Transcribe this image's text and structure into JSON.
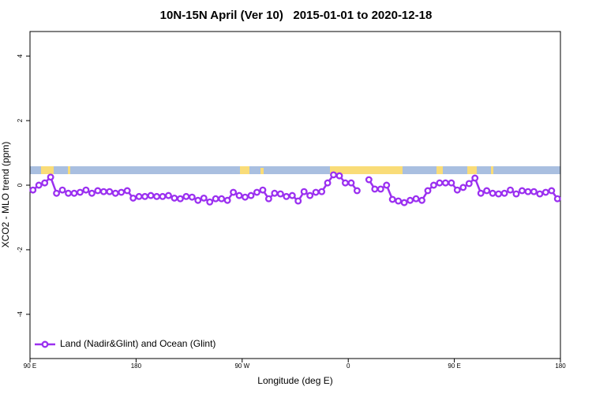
{
  "chart_data": {
    "type": "line",
    "title": "10N-15N April (Ver 10)   2015-01-01 to 2020-12-18",
    "x_label": "Longitude (deg E)",
    "y_label": "XCO2 - MLO trend (ppm)",
    "xlim": [
      90,
      540
    ],
    "xticks": [
      {
        "value": 90,
        "label": "90 E"
      },
      {
        "value": 180,
        "label": "180"
      },
      {
        "value": 270,
        "label": "90 W"
      },
      {
        "value": 360,
        "label": "0"
      },
      {
        "value": 450,
        "label": "90 E"
      },
      {
        "value": 540,
        "label": "180"
      }
    ],
    "ylim": [
      -5.37,
      4.76
    ],
    "yticks": [
      -4,
      -2,
      0,
      2,
      4
    ],
    "legend": "bottomleft",
    "x": [
      92.5,
      97.5,
      102.5,
      107.5,
      112.5,
      117.5,
      122.5,
      127.5,
      132.5,
      137.5,
      142.5,
      147.5,
      152.5,
      157.5,
      162.5,
      167.5,
      172.5,
      177.5,
      182.5,
      187.5,
      192.5,
      197.5,
      202.5,
      207.5,
      212.5,
      217.5,
      222.5,
      227.5,
      232.5,
      237.5,
      242.5,
      247.5,
      252.5,
      257.5,
      262.5,
      267.5,
      272.5,
      277.5,
      282.5,
      287.5,
      292.5,
      297.5,
      302.5,
      307.5,
      312.5,
      317.5,
      322.5,
      327.5,
      332.5,
      337.5,
      342.5,
      347.5,
      352.5,
      357.5,
      362.5,
      367.5,
      372.5,
      377.5,
      382.5,
      387.5,
      392.5,
      397.5,
      402.5,
      407.5,
      412.5,
      417.5,
      422.5,
      427.5,
      432.5,
      437.5,
      442.5,
      447.5,
      452.5,
      457.5,
      462.5,
      467.5,
      472.5,
      477.5,
      482.5,
      487.5,
      492.5,
      497.5,
      502.5,
      507.5,
      512.5,
      517.5,
      522.5,
      527.5,
      532.5,
      537.5
    ],
    "series": [
      {
        "name": "Land (Nadir&Glint) and Ocean (Glint)",
        "color": "#9b30f0",
        "values": [
          -0.15,
          0,
          0.07,
          0.25,
          -0.25,
          -0.15,
          -0.25,
          -0.25,
          -0.22,
          -0.15,
          -0.25,
          -0.17,
          -0.2,
          -0.2,
          -0.25,
          -0.22,
          -0.17,
          -0.4,
          -0.35,
          -0.35,
          -0.32,
          -0.35,
          -0.35,
          -0.32,
          -0.4,
          -0.42,
          -0.35,
          -0.37,
          -0.47,
          -0.4,
          -0.52,
          -0.42,
          -0.42,
          -0.47,
          -0.22,
          -0.32,
          -0.37,
          -0.32,
          -0.22,
          -0.15,
          -0.42,
          -0.25,
          -0.27,
          -0.35,
          -0.32,
          -0.49,
          -0.2,
          -0.32,
          -0.22,
          -0.2,
          0.07,
          0.32,
          0.29,
          0.07,
          0.07,
          -0.17,
          null,
          0.17,
          -0.12,
          -0.12,
          0,
          -0.44,
          -0.49,
          -0.54,
          -0.47,
          -0.42,
          -0.47,
          -0.17,
          0,
          0.07,
          0.07,
          0.07,
          -0.15,
          -0.07,
          0.05,
          0.22,
          -0.25,
          -0.17,
          -0.25,
          -0.27,
          -0.25,
          -0.15,
          -0.27,
          -0.17,
          -0.2,
          -0.2,
          -0.27,
          -0.22,
          -0.17,
          -0.42
        ]
      }
    ]
  }
}
